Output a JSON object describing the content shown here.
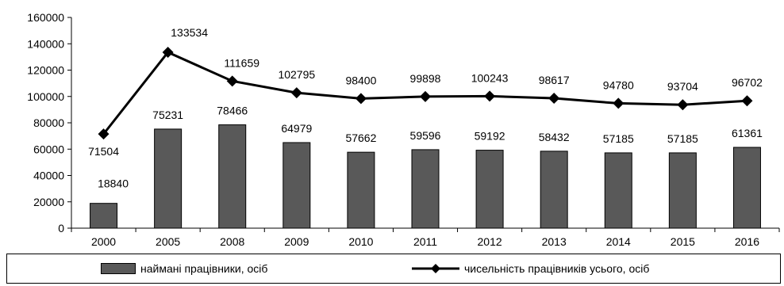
{
  "chart_data": {
    "type": "bar",
    "title": "",
    "xlabel": "",
    "ylabel": "",
    "categories": [
      "2000",
      "2005",
      "2008",
      "2009",
      "2010",
      "2011",
      "2012",
      "2013",
      "2014",
      "2015",
      "2016"
    ],
    "ylim": [
      0,
      160000
    ],
    "yticks": [
      "0",
      "20000",
      "40000",
      "60000",
      "80000",
      "100000",
      "120000",
      "140000",
      "160000"
    ],
    "grid": false,
    "legend_position": "bottom",
    "series": [
      {
        "name": "наймані працівники, осіб",
        "type": "bar",
        "color": "#595959",
        "values": [
          18840,
          75231,
          78466,
          64979,
          57662,
          59596,
          59192,
          58432,
          57185,
          57185,
          61361
        ]
      },
      {
        "name": "чисельність працівників усього, осіб",
        "type": "line",
        "color": "#000000",
        "marker": "diamond",
        "values": [
          71504,
          133534,
          111659,
          102795,
          98400,
          99898,
          100243,
          98617,
          94780,
          93704,
          96702
        ]
      }
    ]
  }
}
